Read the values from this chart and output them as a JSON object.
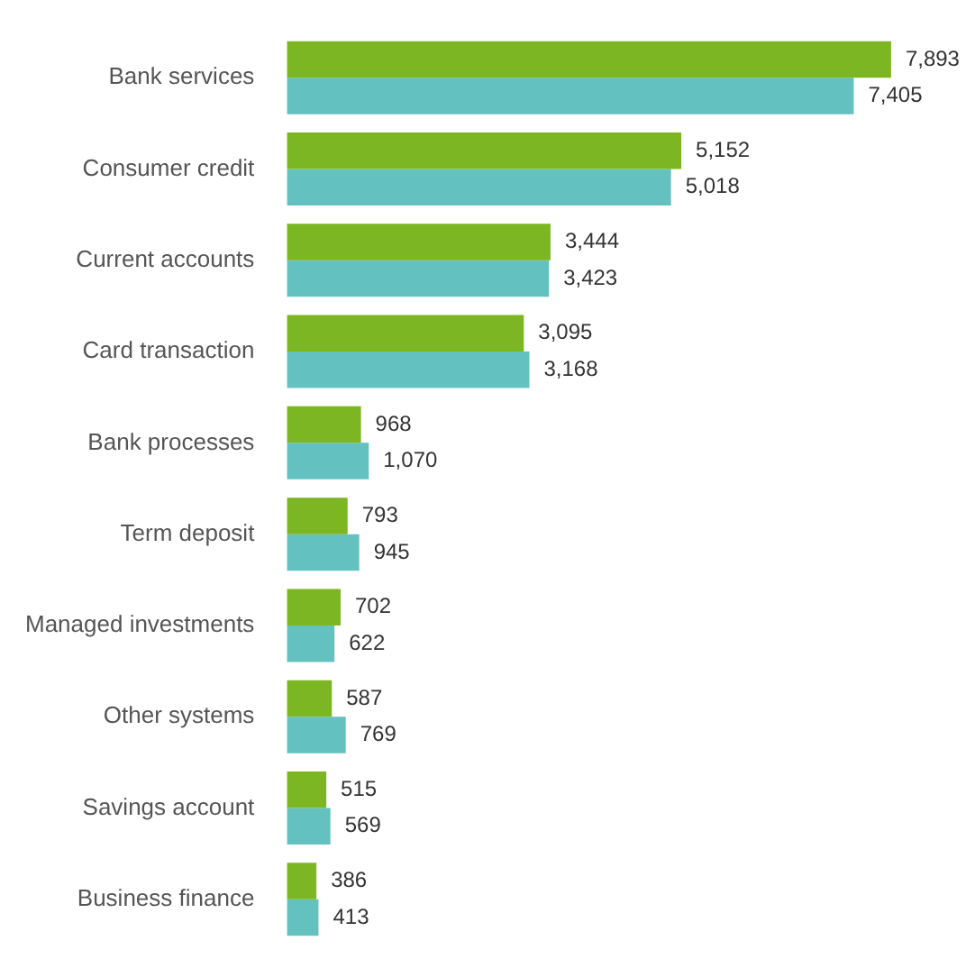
{
  "chart_data": {
    "type": "bar",
    "orientation": "horizontal",
    "categories": [
      "Bank services",
      "Consumer credit",
      "Current accounts",
      "Card transaction",
      "Bank processes",
      "Term deposit",
      "Managed investments",
      "Other systems",
      "Savings account",
      "Business finance"
    ],
    "series": [
      {
        "color": "#7cb623",
        "values": [
          7893,
          5152,
          3444,
          3095,
          968,
          793,
          702,
          587,
          515,
          386
        ],
        "value_labels": [
          "7,893",
          "5,152",
          "3,444",
          "3,095",
          "968",
          "793",
          "702",
          "587",
          "515",
          "386"
        ]
      },
      {
        "color": "#63c1bf",
        "values": [
          7405,
          5018,
          3423,
          3168,
          1070,
          945,
          622,
          769,
          569,
          413
        ],
        "value_labels": [
          "7,405",
          "5,018",
          "3,423",
          "3,168",
          "1,070",
          "945",
          "622",
          "769",
          "569",
          "413"
        ]
      }
    ],
    "legend": false
  }
}
